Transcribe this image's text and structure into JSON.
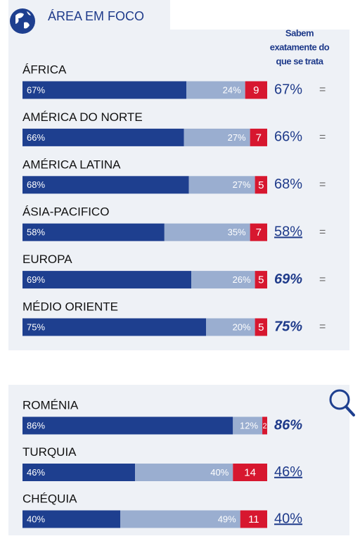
{
  "chart_data": [
    {
      "type": "stacked-bar",
      "title": "ÁREA EM FOCO",
      "column_header": [
        "Sabem",
        "exatamente do",
        "que se trata"
      ],
      "xlim": [
        0,
        100
      ],
      "categories": [
        "ÁFRICA",
        "AMÉRICA DO NORTE",
        "AMÉRICA LATINA",
        "ÁSIA-PACIFICO",
        "EUROPA",
        "MÉDIO ORIENTE"
      ],
      "series": [
        {
          "color": "#1e3f8f",
          "values": [
            67,
            66,
            68,
            58,
            69,
            75
          ],
          "value_labels": [
            "67%",
            "66%",
            "68%",
            "58%",
            "69%",
            "75%"
          ]
        },
        {
          "color": "#9aaed0",
          "values": [
            24,
            27,
            27,
            35,
            26,
            20
          ],
          "value_labels": [
            "24%",
            "27%",
            "27%",
            "35%",
            "26%",
            "20%"
          ]
        },
        {
          "color": "#d7172f",
          "values": [
            9,
            7,
            5,
            7,
            5,
            5
          ]
        }
      ],
      "known": {
        "values": [
          67,
          66,
          68,
          58,
          69,
          75
        ],
        "value_labels": [
          "67%",
          "66%",
          "68%",
          "58%",
          "69%",
          "75%"
        ],
        "styles": [
          "plain",
          "plain",
          "plain",
          "underline",
          "bold-italic",
          "bold-italic"
        ]
      },
      "trend": [
        "=",
        "=",
        "=",
        "=",
        "=",
        "="
      ]
    },
    {
      "type": "stacked-bar",
      "xlim": [
        0,
        100
      ],
      "categories": [
        "ROMÉNIA",
        "TURQUIA",
        "CHÉQUIA"
      ],
      "series": [
        {
          "color": "#1e3f8f",
          "values": [
            86,
            46,
            40
          ],
          "value_labels": [
            "86%",
            "46%",
            "40%"
          ]
        },
        {
          "color": "#9aaed0",
          "values": [
            12,
            40,
            49
          ],
          "value_labels": [
            "12%",
            "40%",
            "49%"
          ]
        },
        {
          "color": "#d7172f",
          "values": [
            2,
            14,
            11
          ]
        }
      ],
      "known": {
        "values": [
          86,
          46,
          40
        ],
        "value_labels": [
          "86%",
          "46%",
          "40%"
        ],
        "styles": [
          "bold-italic",
          "underline",
          "underline"
        ]
      }
    }
  ]
}
